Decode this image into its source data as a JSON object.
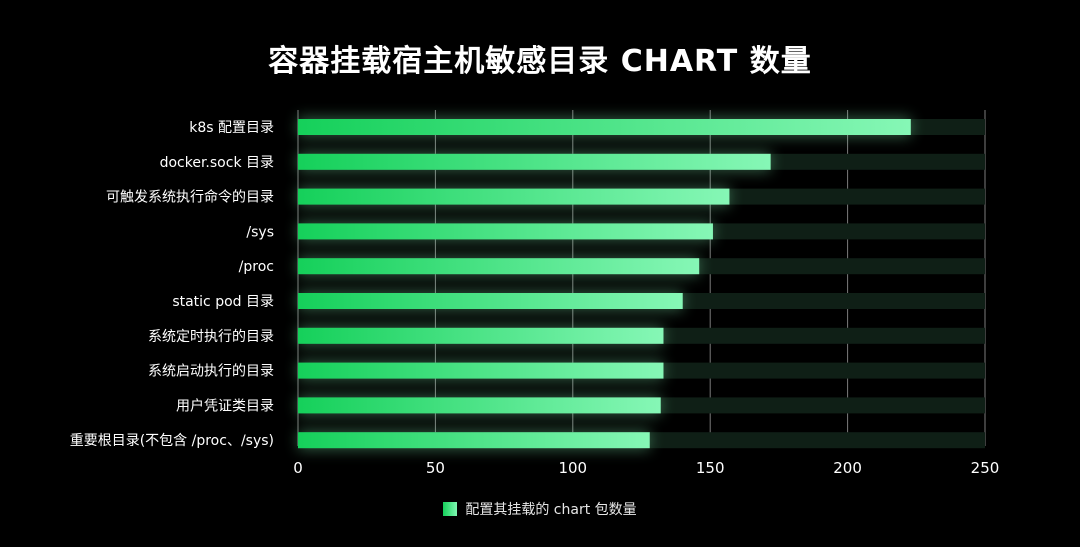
{
  "chart_data": {
    "type": "bar",
    "orientation": "horizontal",
    "title": "容器挂载宿主机敏感目录 CHART 数量",
    "categories": [
      "k8s 配置目录",
      "docker.sock 目录",
      "可触发系统执行命令的目录",
      "/sys",
      "/proc",
      "static pod 目录",
      "系统定时执行的目录",
      "系统启动执行的目录",
      "用户凭证类目录",
      "重要根目录(不包含 /proc、/sys)"
    ],
    "series": [
      {
        "name": "配置其挂载的 chart 包数量",
        "values": [
          223,
          172,
          157,
          151,
          146,
          140,
          133,
          133,
          132,
          128
        ]
      }
    ],
    "xlim": [
      0,
      250
    ],
    "xticks": [
      0,
      50,
      100,
      150,
      200,
      250
    ],
    "grid": true,
    "legend_position": "bottom-center",
    "colors": {
      "background": "#000000",
      "bar_start": "#15d05a",
      "bar_end": "#86f7b6",
      "track": "#0f1f16",
      "grid": "#8a8a8a",
      "text": "#ffffff"
    }
  }
}
